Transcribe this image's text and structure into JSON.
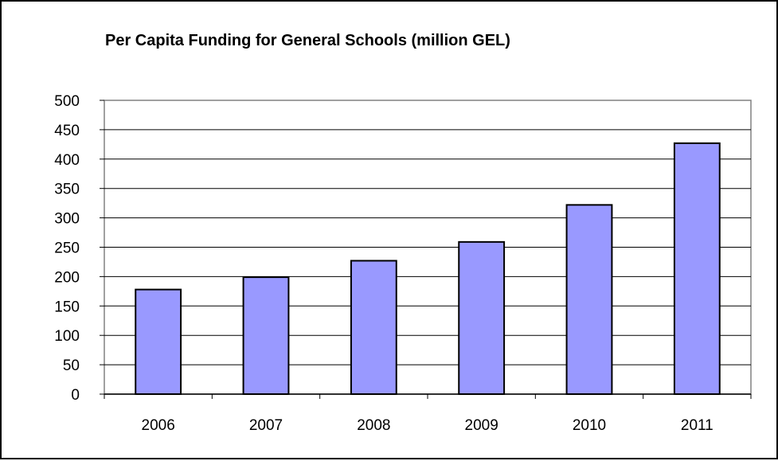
{
  "chart_data": {
    "type": "bar",
    "title": "Per Capita Funding for General Schools (million GEL)",
    "xlabel": "",
    "ylabel": "",
    "categories": [
      "2006",
      "2007",
      "2008",
      "2009",
      "2010",
      "2011"
    ],
    "values": [
      178,
      199,
      227,
      259,
      322,
      427
    ],
    "ylim": [
      0,
      500
    ],
    "yticks": [
      "0",
      "50",
      "100",
      "150",
      "200",
      "250",
      "300",
      "350",
      "400",
      "450",
      "500"
    ],
    "grid": "horizontal",
    "legend": "none",
    "colors": {
      "bar_fill": "#9999ff",
      "bar_stroke": "#000000",
      "plot_border": "#808080",
      "gridline": "#000000"
    }
  }
}
